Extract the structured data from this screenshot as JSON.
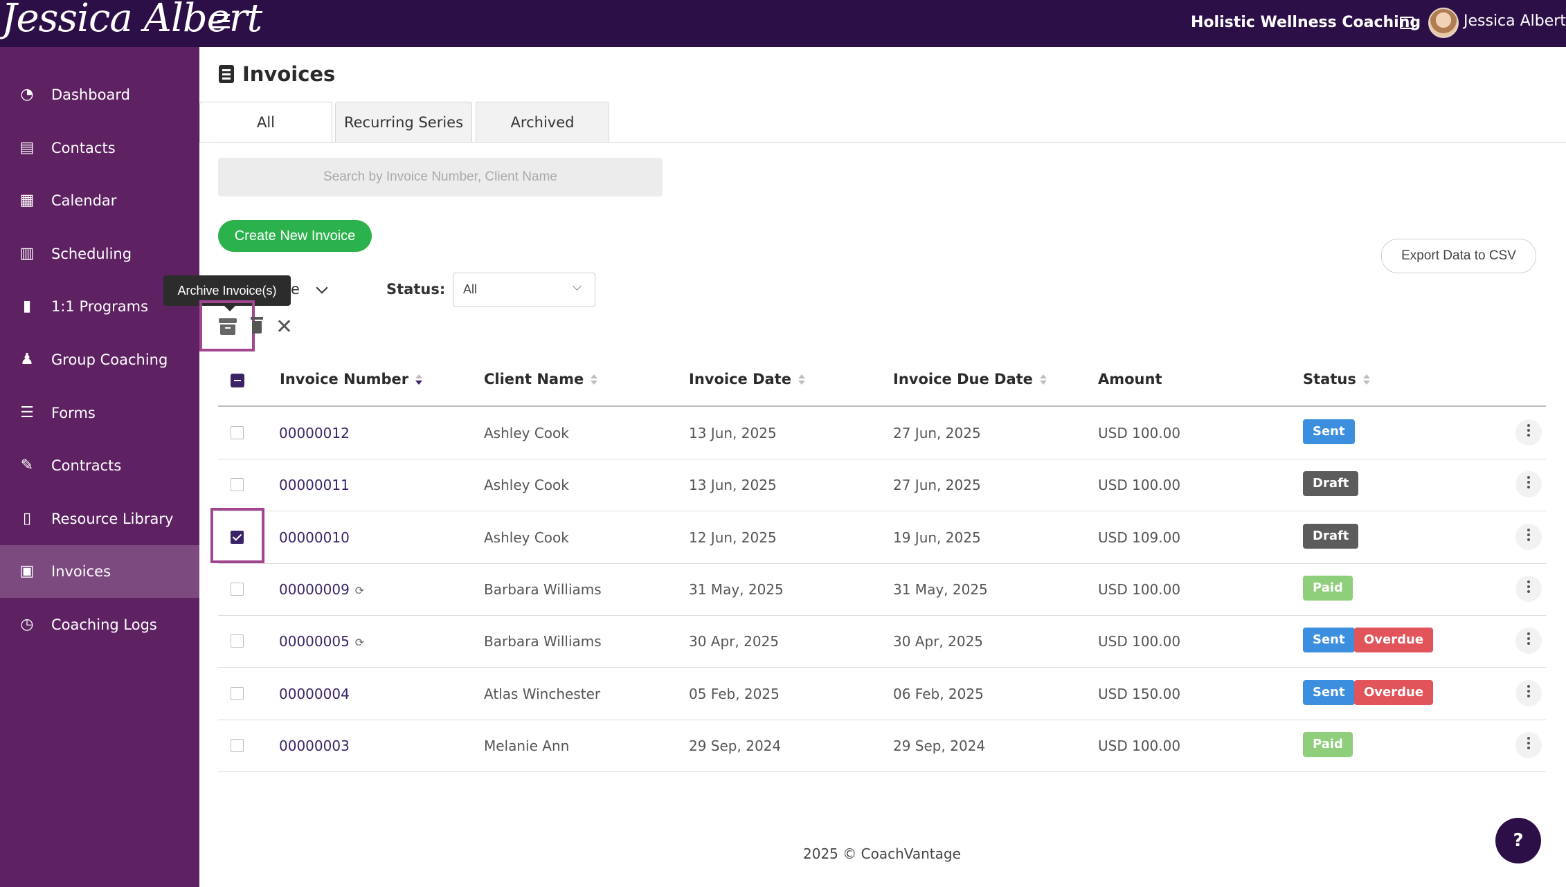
{
  "header": {
    "logo_text": "Jessica Albert",
    "org_name": "Holistic Wellness Coaching",
    "user_name": "Jessica Albert"
  },
  "sidebar": {
    "items": [
      {
        "label": "Dashboard",
        "icon": "dashboard-gauge-icon"
      },
      {
        "label": "Contacts",
        "icon": "contacts-book-icon"
      },
      {
        "label": "Calendar",
        "icon": "calendar-icon"
      },
      {
        "label": "Scheduling",
        "icon": "scheduling-calendar-icon"
      },
      {
        "label": "1:1 Programs",
        "icon": "book-icon"
      },
      {
        "label": "Group Coaching",
        "icon": "users-icon"
      },
      {
        "label": "Forms",
        "icon": "list-check-icon"
      },
      {
        "label": "Contracts",
        "icon": "signature-icon"
      },
      {
        "label": "Resource Library",
        "icon": "library-icon"
      },
      {
        "label": "Invoices",
        "icon": "invoice-icon",
        "active": true
      },
      {
        "label": "Coaching Logs",
        "icon": "clock-icon"
      }
    ]
  },
  "page": {
    "title": "Invoices",
    "tabs": [
      "All",
      "Recurring Series",
      "Archived"
    ],
    "active_tab": "All",
    "search_placeholder": "Search by Invoice Number, Client Name",
    "create_label": "Create New Invoice",
    "export_label": "Export Data to CSV",
    "tooltip": "Archive Invoice(s)",
    "filter_tail": "e",
    "status_label": "Status:",
    "status_value": "All"
  },
  "table": {
    "columns": [
      "Invoice Number",
      "Client Name",
      "Invoice Date",
      "Invoice Due Date",
      "Amount",
      "Status"
    ],
    "rows": [
      {
        "number": "00000012",
        "client": "Ashley Cook",
        "date": "13 Jun, 2025",
        "due": "27 Jun, 2025",
        "amount": "USD 100.00",
        "badges": [
          "Sent"
        ],
        "checked": false,
        "recurring": false
      },
      {
        "number": "00000011",
        "client": "Ashley Cook",
        "date": "13 Jun, 2025",
        "due": "27 Jun, 2025",
        "amount": "USD 100.00",
        "badges": [
          "Draft"
        ],
        "checked": false,
        "recurring": false
      },
      {
        "number": "00000010",
        "client": "Ashley Cook",
        "date": "12 Jun, 2025",
        "due": "19 Jun, 2025",
        "amount": "USD 109.00",
        "badges": [
          "Draft"
        ],
        "checked": true,
        "recurring": false
      },
      {
        "number": "00000009",
        "client": "Barbara Williams",
        "date": "31 May, 2025",
        "due": "31 May, 2025",
        "amount": "USD 100.00",
        "badges": [
          "Paid"
        ],
        "checked": false,
        "recurring": true
      },
      {
        "number": "00000005",
        "client": "Barbara Williams",
        "date": "30 Apr, 2025",
        "due": "30 Apr, 2025",
        "amount": "USD 100.00",
        "badges": [
          "Sent",
          "Overdue"
        ],
        "checked": false,
        "recurring": true
      },
      {
        "number": "00000004",
        "client": "Atlas Winchester",
        "date": "05 Feb, 2025",
        "due": "06 Feb, 2025",
        "amount": "USD 150.00",
        "badges": [
          "Sent",
          "Overdue"
        ],
        "checked": false,
        "recurring": false
      },
      {
        "number": "00000003",
        "client": "Melanie Ann",
        "date": "29 Sep, 2024",
        "due": "29 Sep, 2024",
        "amount": "USD 100.00",
        "badges": [
          "Paid"
        ],
        "checked": false,
        "recurring": false
      }
    ]
  },
  "badge_colors": {
    "Sent": "#3c8fde",
    "Draft": "#5c5c5c",
    "Paid": "#8fce7b",
    "Overdue": "#e0545a"
  },
  "footer": "2025 © CoachVantage",
  "help_label": "?"
}
